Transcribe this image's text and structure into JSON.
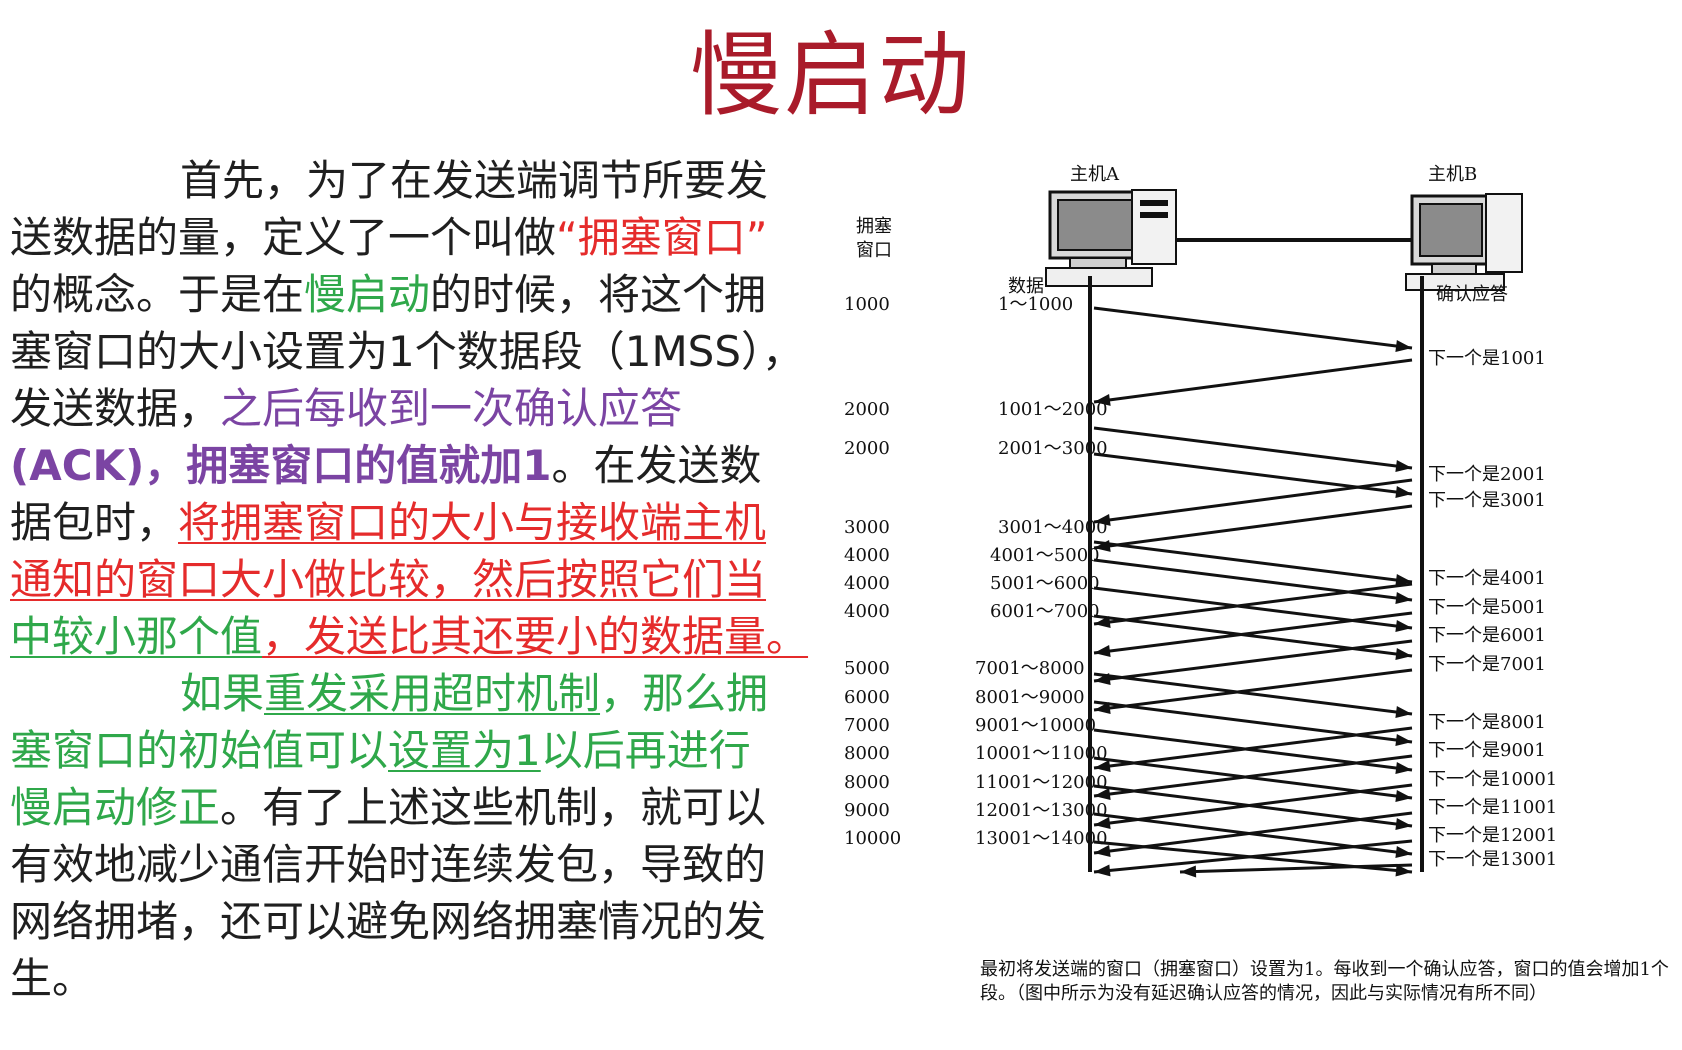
{
  "title": "慢启动",
  "paragraph": {
    "lines": [
      {
        "segments": [
          {
            "text": "首先，为了在发送端调节所要发",
            "class": ""
          }
        ],
        "indent": true
      },
      {
        "segments": [
          {
            "text": "送数据的量，定义了一个叫做",
            "class": ""
          },
          {
            "text": "“拥塞窗口”",
            "class": "red"
          }
        ]
      },
      {
        "segments": [
          {
            "text": "的概念。于是在",
            "class": ""
          },
          {
            "text": "慢启动",
            "class": "green"
          },
          {
            "text": "的时候，将这个拥",
            "class": ""
          }
        ]
      },
      {
        "segments": [
          {
            "text": "塞窗口的大小设置为1个数据段（1MSS），",
            "class": ""
          }
        ]
      },
      {
        "segments": [
          {
            "text": "发送数据，",
            "class": ""
          },
          {
            "text": "之后每收到一次确认应答",
            "class": "purple"
          }
        ]
      },
      {
        "segments": [
          {
            "text": "(ACK)，拥塞窗口的值就加1",
            "class": "purple bold-part"
          },
          {
            "text": "。在发送数",
            "class": ""
          }
        ]
      },
      {
        "segments": [
          {
            "text": "据包时，",
            "class": ""
          },
          {
            "text": "将拥塞窗口的大小与接收端主机",
            "class": "red underline-red"
          }
        ]
      },
      {
        "segments": [
          {
            "text": "通知的窗口大小做比较，然后按照它们当",
            "class": "red underline-red"
          }
        ]
      },
      {
        "segments": [
          {
            "text": "中较小那个值",
            "class": "green underline-green"
          },
          {
            "text": "，发送比其还要小的数据量。",
            "class": "red underline-red"
          }
        ]
      },
      {
        "segments": [
          {
            "text": "如果",
            "class": "green"
          },
          {
            "text": "重发采用超时机制",
            "class": "green underline-green"
          },
          {
            "text": "，那么拥",
            "class": "green"
          }
        ],
        "indent": true
      },
      {
        "segments": [
          {
            "text": "塞窗口的初始值可以",
            "class": "green"
          },
          {
            "text": "设置为1",
            "class": "green underline-green"
          },
          {
            "text": "以后再进行",
            "class": "green"
          }
        ]
      },
      {
        "segments": [
          {
            "text": "慢启动修正",
            "class": "green"
          },
          {
            "text": "。有了上述这些机制，就可以",
            "class": ""
          }
        ]
      },
      {
        "segments": [
          {
            "text": "有效地减少通信开始时连续发包，导致的",
            "class": ""
          }
        ]
      },
      {
        "segments": [
          {
            "text": "网络拥堵，还可以避免网络拥塞情况的发",
            "class": ""
          }
        ]
      },
      {
        "segments": [
          {
            "text": "生。",
            "class": ""
          }
        ]
      }
    ]
  },
  "diagram": {
    "host_a_label": "主机A",
    "host_b_label": "主机B",
    "cwnd_label": "拥塞窗口",
    "data_label": "数据",
    "ack_label": "确认应答",
    "rows": [
      {
        "cwnd": "1000",
        "data": "1～1000"
      },
      {
        "cwnd": "2000",
        "data": "1001～2000"
      },
      {
        "cwnd": "2000",
        "data": "2001～3000"
      },
      {
        "cwnd": "3000",
        "data": "3001～4000"
      },
      {
        "cwnd": "4000",
        "data": "4001～5000"
      },
      {
        "cwnd": "4000",
        "data": "5001～6000"
      },
      {
        "cwnd": "4000",
        "data": "6001～7000"
      },
      {
        "cwnd": "5000",
        "data": "7001～8000"
      },
      {
        "cwnd": "6000",
        "data": "8001～9000"
      },
      {
        "cwnd": "7000",
        "data": "9001～10000"
      },
      {
        "cwnd": "8000",
        "data": "10001～11000"
      },
      {
        "cwnd": "8000",
        "data": "11001～12000"
      },
      {
        "cwnd": "9000",
        "data": "12001～13000"
      },
      {
        "cwnd": "10000",
        "data": "13001～14000"
      }
    ],
    "acks": [
      "下一个是1001",
      "下一个是2001",
      "下一个是3001",
      "下一个是4001",
      "下一个是5001",
      "下一个是6001",
      "下一个是7001",
      "下一个是8001",
      "下一个是9001",
      "下一个是10001",
      "下一个是11001",
      "下一个是12001",
      "下一个是13001"
    ],
    "caption": "最初将发送端的窗口（拥塞窗口）设置为1。每收到一个确认应答，窗口的值会增加1个段。（图中所示为没有延迟确认应答的情况，因此与实际情况有所不同）"
  }
}
